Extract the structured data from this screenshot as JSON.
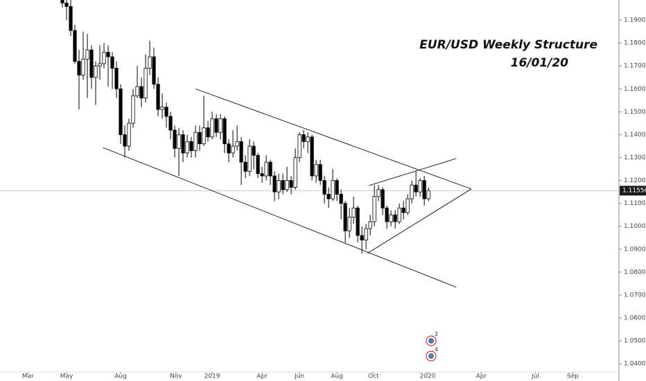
{
  "chart_data": {
    "type": "candlestick",
    "title": "EUR/USD Weekly Structure",
    "subtitle": "16/01/20",
    "x": [
      0,
      1,
      2,
      3,
      4,
      5,
      6,
      7,
      8,
      9,
      10,
      11,
      12,
      13,
      14,
      15,
      16,
      17,
      18,
      19,
      20,
      21,
      22,
      23,
      24,
      25,
      26,
      27,
      28,
      29,
      30,
      31,
      32,
      33,
      34,
      35,
      36,
      37,
      38,
      39,
      40,
      41,
      42,
      43,
      44,
      45,
      46,
      47,
      48,
      49,
      50,
      51,
      52,
      53,
      54,
      55,
      56,
      57,
      58,
      59,
      60,
      61,
      62,
      63,
      64,
      65,
      66,
      67,
      68,
      69,
      70,
      71,
      72,
      73,
      74,
      75,
      76,
      77,
      78,
      79,
      80,
      81,
      82,
      83,
      84,
      85,
      86,
      87,
      88
    ],
    "open": [
      1.199,
      1.1975,
      1.196,
      1.1855,
      1.172,
      1.166,
      1.173,
      1.177,
      1.165,
      1.17,
      1.171,
      1.176,
      1.174,
      1.169,
      1.16,
      1.14,
      1.135,
      1.145,
      1.157,
      1.161,
      1.156,
      1.169,
      1.174,
      1.162,
      1.151,
      1.152,
      1.148,
      1.142,
      1.134,
      1.14,
      1.132,
      1.137,
      1.133,
      1.141,
      1.136,
      1.143,
      1.139,
      1.147,
      1.141,
      1.147,
      1.136,
      1.132,
      1.135,
      1.137,
      1.128,
      1.124,
      1.135,
      1.131,
      1.123,
      1.122,
      1.128,
      1.122,
      1.115,
      1.12,
      1.116,
      1.12,
      1.117,
      1.13,
      1.14,
      1.137,
      1.139,
      1.122,
      1.127,
      1.12,
      1.114,
      1.112,
      1.12,
      1.114,
      1.11,
      1.098,
      1.104,
      1.108,
      1.096,
      1.094,
      1.099,
      1.102,
      1.113,
      1.116,
      1.108,
      1.102,
      1.105,
      1.102,
      1.108,
      1.106,
      1.112,
      1.118,
      1.115,
      1.12,
      1.112
    ],
    "high": [
      1.1998,
      1.199,
      1.199,
      1.188,
      1.177,
      1.185,
      1.184,
      1.179,
      1.172,
      1.179,
      1.18,
      1.179,
      1.176,
      1.172,
      1.162,
      1.144,
      1.147,
      1.16,
      1.17,
      1.165,
      1.175,
      1.181,
      1.178,
      1.165,
      1.158,
      1.154,
      1.15,
      1.144,
      1.143,
      1.142,
      1.14,
      1.139,
      1.144,
      1.144,
      1.157,
      1.146,
      1.15,
      1.149,
      1.149,
      1.148,
      1.138,
      1.142,
      1.144,
      1.139,
      1.131,
      1.138,
      1.137,
      1.132,
      1.126,
      1.131,
      1.129,
      1.124,
      1.123,
      1.123,
      1.126,
      1.122,
      1.134,
      1.141,
      1.142,
      1.141,
      1.14,
      1.129,
      1.129,
      1.122,
      1.117,
      1.125,
      1.121,
      1.116,
      1.111,
      1.108,
      1.113,
      1.109,
      1.1,
      1.101,
      1.105,
      1.118,
      1.118,
      1.117,
      1.109,
      1.107,
      1.107,
      1.11,
      1.111,
      1.114,
      1.12,
      1.124,
      1.121,
      1.122,
      1.117
    ],
    "low": [
      1.1955,
      1.19,
      1.183,
      1.171,
      1.151,
      1.164,
      1.156,
      1.16,
      1.153,
      1.164,
      1.169,
      1.161,
      1.16,
      1.156,
      1.136,
      1.13,
      1.133,
      1.143,
      1.156,
      1.152,
      1.154,
      1.166,
      1.16,
      1.148,
      1.147,
      1.143,
      1.138,
      1.13,
      1.122,
      1.128,
      1.13,
      1.13,
      1.13,
      1.133,
      1.135,
      1.137,
      1.138,
      1.139,
      1.138,
      1.132,
      1.128,
      1.13,
      1.133,
      1.118,
      1.121,
      1.122,
      1.125,
      1.121,
      1.119,
      1.12,
      1.118,
      1.111,
      1.112,
      1.114,
      1.115,
      1.114,
      1.116,
      1.128,
      1.134,
      1.132,
      1.12,
      1.119,
      1.118,
      1.11,
      1.108,
      1.111,
      1.111,
      1.103,
      1.093,
      1.095,
      1.101,
      1.093,
      1.088,
      1.09,
      1.096,
      1.1,
      1.111,
      1.105,
      1.099,
      1.1,
      1.099,
      1.101,
      1.103,
      1.105,
      1.11,
      1.113,
      1.113,
      1.109,
      1.111
    ],
    "close": [
      1.1975,
      1.196,
      1.1855,
      1.172,
      1.166,
      1.173,
      1.177,
      1.165,
      1.17,
      1.171,
      1.176,
      1.174,
      1.169,
      1.16,
      1.14,
      1.135,
      1.145,
      1.157,
      1.161,
      1.156,
      1.169,
      1.174,
      1.162,
      1.151,
      1.152,
      1.148,
      1.142,
      1.134,
      1.14,
      1.132,
      1.137,
      1.133,
      1.141,
      1.136,
      1.143,
      1.139,
      1.147,
      1.141,
      1.147,
      1.136,
      1.132,
      1.135,
      1.137,
      1.128,
      1.124,
      1.135,
      1.131,
      1.123,
      1.122,
      1.128,
      1.122,
      1.115,
      1.12,
      1.116,
      1.12,
      1.117,
      1.13,
      1.14,
      1.137,
      1.139,
      1.122,
      1.127,
      1.12,
      1.114,
      1.112,
      1.12,
      1.114,
      1.11,
      1.098,
      1.104,
      1.108,
      1.096,
      1.094,
      1.099,
      1.102,
      1.113,
      1.116,
      1.108,
      1.102,
      1.105,
      1.102,
      1.108,
      1.106,
      1.112,
      1.118,
      1.115,
      1.12,
      1.112,
      1.1156
    ],
    "up_color": "#ffffff",
    "down_color": "#000000",
    "border_color": "#000000",
    "xlim": [
      -15,
      133.8
    ],
    "xticks": [
      {
        "value": -8.3,
        "label": "Mar"
      },
      {
        "value": 1,
        "label": "May"
      },
      {
        "value": 14,
        "label": "Aug"
      },
      {
        "value": 27.3,
        "label": "Nov"
      },
      {
        "value": 36,
        "label": "2019"
      },
      {
        "value": 48,
        "label": "Apr"
      },
      {
        "value": 57,
        "label": "Jun"
      },
      {
        "value": 66,
        "label": "Aug"
      },
      {
        "value": 74.8,
        "label": "Oct"
      },
      {
        "value": 87.8,
        "label": "2020"
      },
      {
        "value": 100.7,
        "label": "Apr"
      },
      {
        "value": 113.7,
        "label": "Jul"
      },
      {
        "value": 122.7,
        "label": "Sep"
      }
    ],
    "ylim": [
      1.0364,
      1.1988
    ],
    "yticks": [
      {
        "value": 1.04,
        "label": "1.04000"
      },
      {
        "value": 1.05,
        "label": "1.05000"
      },
      {
        "value": 1.06,
        "label": "1.06000"
      },
      {
        "value": 1.07,
        "label": "1.07000"
      },
      {
        "value": 1.08,
        "label": "1.08000"
      },
      {
        "value": 1.09,
        "label": "1.09000"
      },
      {
        "value": 1.1,
        "label": "1.10000"
      },
      {
        "value": 1.11,
        "label": "1.11000"
      },
      {
        "value": 1.12,
        "label": "1.12000"
      },
      {
        "value": 1.13,
        "label": "1.13000"
      },
      {
        "value": 1.14,
        "label": "1.14000"
      },
      {
        "value": 1.15,
        "label": "1.15000"
      },
      {
        "value": 1.16,
        "label": "1.16000"
      },
      {
        "value": 1.17,
        "label": "1.17000"
      },
      {
        "value": 1.18,
        "label": "1.18000"
      },
      {
        "value": 1.19,
        "label": "1.19000"
      }
    ],
    "last_price": 1.11556,
    "trendlines": [
      {
        "x": [
          32,
          98.3
        ],
        "y": [
          1.16,
          1.1163
        ]
      },
      {
        "x": [
          9.7,
          94.7
        ],
        "y": [
          1.1344,
          1.0734
        ]
      },
      {
        "x": [
          73.3,
          98.3
        ],
        "y": [
          1.0882,
          1.1163
        ]
      },
      {
        "x": [
          73.7,
          94.7
        ],
        "y": [
          1.1178,
          1.1296
        ]
      }
    ],
    "events": [
      "2",
      "4"
    ]
  }
}
